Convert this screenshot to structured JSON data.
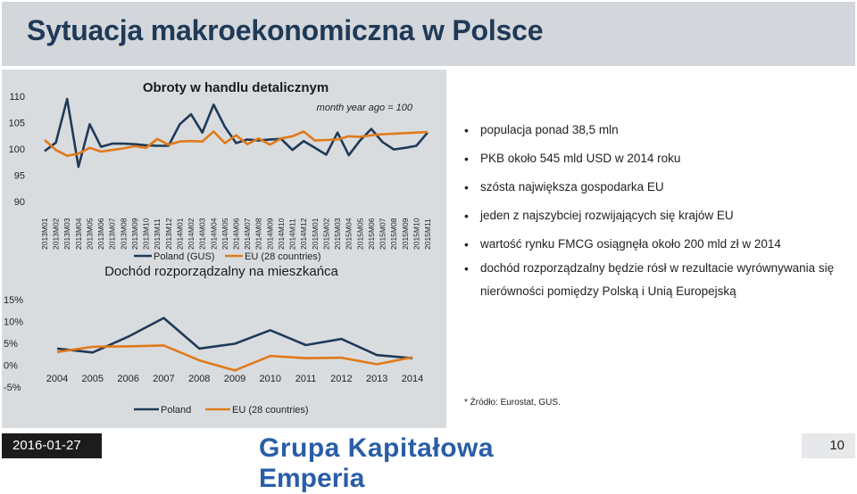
{
  "title": "Sytuacja makroekonomiczna w Polsce",
  "chart_data": [
    {
      "type": "line",
      "title": "Obroty w handlu detalicznym",
      "subtitle": "month year ago = 100",
      "yticks": [
        "110",
        "105",
        "100",
        "95",
        "90"
      ],
      "ylim": [
        90,
        110
      ],
      "categories": [
        "2013M01",
        "2013M02",
        "2013M03",
        "2013M04",
        "2013M05",
        "2013M06",
        "2013M07",
        "2013M08",
        "2013M09",
        "2013M10",
        "2013M11",
        "2013M12",
        "2014M01",
        "2014M02",
        "2014M03",
        "2014M04",
        "2014M05",
        "2014M06",
        "2014M07",
        "2014M08",
        "2014M09",
        "2014M10",
        "2014M11",
        "2014M12",
        "2015M01",
        "2015M02",
        "2015M03",
        "2015M04",
        "2015M05",
        "2015M06",
        "2015M07",
        "2015M08",
        "2015M09",
        "2015M10",
        "2015M11"
      ],
      "series": [
        {
          "name": "Poland (GUS)",
          "color": "#1f3a57",
          "values": [
            99.6,
            101.2,
            109.5,
            96.6,
            104.7,
            100.4,
            101.0,
            101.0,
            100.9,
            100.7,
            100.6,
            100.6,
            104.7,
            106.6,
            103.1,
            108.4,
            104.2,
            101.1,
            101.8,
            101.6,
            101.8,
            101.9,
            99.8,
            101.5,
            100.2,
            98.9,
            103.1,
            98.8,
            101.6,
            103.8,
            101.3,
            99.9,
            100.2,
            100.6,
            103.1
          ]
        },
        {
          "name": "EU (28 countries)",
          "color": "#e07a1a",
          "values": [
            101.7,
            99.8,
            98.7,
            99.1,
            100.2,
            99.5,
            99.8,
            100.1,
            100.5,
            100.2,
            101.9,
            100.8,
            101.4,
            101.5,
            101.4,
            103.3,
            101.1,
            102.6,
            100.9,
            102.0,
            100.8,
            102.0,
            102.4,
            103.3,
            101.6,
            101.7,
            101.8,
            102.4,
            102.3,
            102.6,
            102.8,
            102.9,
            103.0,
            103.1,
            103.2
          ]
        }
      ],
      "legend": [
        "Poland (GUS)",
        "EU (28 countries)"
      ]
    },
    {
      "type": "line",
      "title": "Dochód rozporządzalny na mieszkańca",
      "yticks": [
        "15%",
        "10%",
        "5%",
        "0%",
        "-5%"
      ],
      "ylim": [
        -5,
        15
      ],
      "categories": [
        "2004",
        "2005",
        "2006",
        "2007",
        "2008",
        "2009",
        "2010",
        "2011",
        "2012",
        "2013",
        "2014"
      ],
      "series": [
        {
          "name": "Poland",
          "color": "#1f3a57",
          "values": [
            3.8,
            2.9,
            6.5,
            10.8,
            3.8,
            4.9,
            8.0,
            4.6,
            6.0,
            2.3,
            1.6
          ]
        },
        {
          "name": "EU (28 countries)",
          "color": "#e07a1a",
          "values": [
            3.0,
            4.2,
            4.3,
            4.5,
            1.1,
            -1.2,
            2.1,
            1.6,
            1.7,
            0.2,
            1.8
          ]
        }
      ],
      "legend": [
        "Poland",
        "EU (28 countries)"
      ]
    }
  ],
  "bullets": [
    "populacja ponad 38,5 mln",
    "PKB około 545 mld USD w 2014 roku",
    "szósta największa gospodarka EU",
    "jeden z najszybciej rozwijających się krajów EU",
    "wartość rynku FMCG osiągnęła około 200 mld zł w 2014",
    "dochód rozporządzalny będzie rósł w rezultacie wyrównywania się nierówności pomiędzy Polską i Unią Europejską"
  ],
  "source": "* Źródło: Eurostat, GUS.",
  "footer": {
    "date": "2016-01-27",
    "logo_part1": "Grupa Kapitałowa",
    "logo_part2": "Emperia",
    "page": "10"
  }
}
